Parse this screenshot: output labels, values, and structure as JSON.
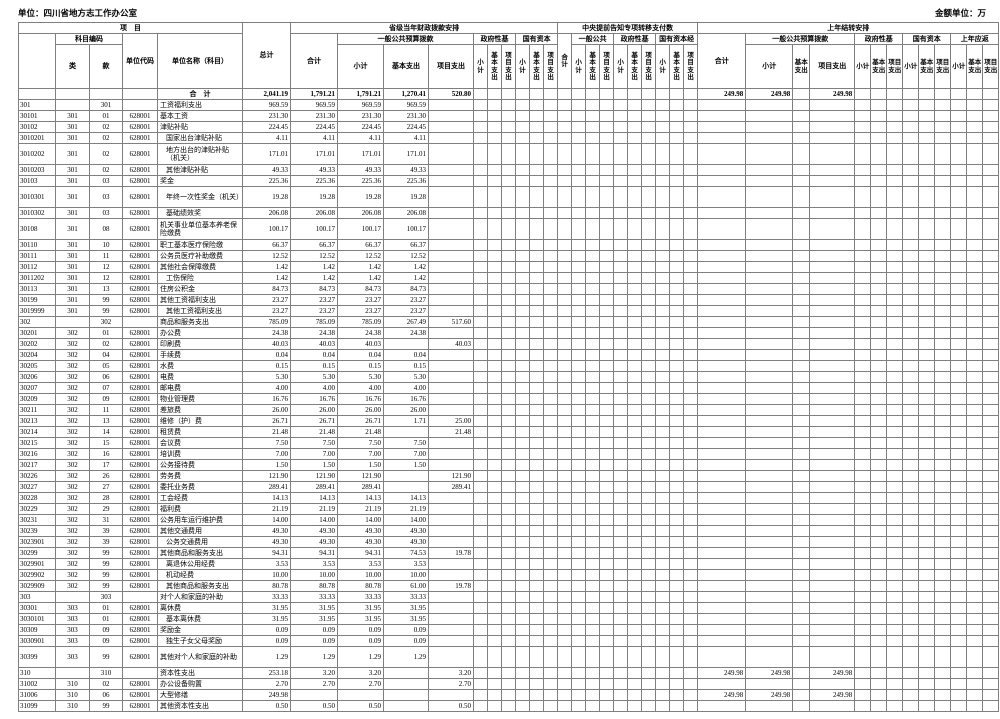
{
  "meta": {
    "unit_label": "单位：四川省地方志工作办公室",
    "amount_unit": "金额单位：万"
  },
  "header": {
    "project": "项　目",
    "subject_code": "科目编码",
    "cls": "类",
    "sec": "款",
    "unit_code": "单位代码",
    "unit_name": "单位名称（科目）",
    "grand_total": "总计",
    "group_provincial": "省级当年财政拨款安排",
    "group_central": "中央提前告知专项转移支付数",
    "group_carryover": "上年结转安排",
    "total_label": "合计",
    "pub_full": "一般公共预算拨款",
    "pub_short": "一般公共",
    "gov_fund": "政府性基",
    "state_capital": "国有资本",
    "state_capital2": "国有资本经",
    "prior_year": "上年应返",
    "subtotal": "小计",
    "basic": "基本支出",
    "project_exp": "项目支出"
  },
  "rows": [
    {
      "code": "",
      "cls": "",
      "sec": "",
      "unit": "",
      "name": "合　计",
      "total": "2,041.19",
      "prov": [
        "1,791.21",
        "1,791.21",
        "1,270.41",
        "520.80"
      ],
      "carry": [
        "249.98",
        "249.98",
        "",
        "249.98"
      ],
      "bold": true
    },
    {
      "code": "301",
      "cls": "",
      "sec": "301",
      "unit": "",
      "name": "工资福利支出",
      "total": "969.59",
      "prov": [
        "969.59",
        "969.59",
        "969.59",
        ""
      ]
    },
    {
      "code": "30101",
      "cls": "301",
      "sec": "01",
      "unit": "628001",
      "name": "基本工资",
      "total": "231.30",
      "prov": [
        "231.30",
        "231.30",
        "231.30",
        ""
      ]
    },
    {
      "code": "30102",
      "cls": "301",
      "sec": "02",
      "unit": "628001",
      "name": "津贴补贴",
      "total": "224.45",
      "prov": [
        "224.45",
        "224.45",
        "224.45",
        ""
      ]
    },
    {
      "code": "3010201",
      "cls": "301",
      "sec": "02",
      "unit": "628001",
      "name": "国家出台津贴补贴",
      "total": "4.11",
      "prov": [
        "4.11",
        "4.11",
        "4.11",
        ""
      ],
      "indent": true
    },
    {
      "code": "3010202",
      "cls": "301",
      "sec": "02",
      "unit": "628001",
      "name": "地方出台的津贴补贴（机关）",
      "total": "171.01",
      "prov": [
        "171.01",
        "171.01",
        "171.01",
        ""
      ],
      "indent": true,
      "twoline": true
    },
    {
      "code": "3010203",
      "cls": "301",
      "sec": "02",
      "unit": "628001",
      "name": "其他津贴补贴",
      "total": "49.33",
      "prov": [
        "49.33",
        "49.33",
        "49.33",
        ""
      ],
      "indent": true
    },
    {
      "code": "30103",
      "cls": "301",
      "sec": "03",
      "unit": "628001",
      "name": "奖金",
      "total": "225.36",
      "prov": [
        "225.36",
        "225.36",
        "225.36",
        ""
      ]
    },
    {
      "code": "3010301",
      "cls": "301",
      "sec": "03",
      "unit": "628001",
      "name": "年终一次性奖金（机关）",
      "total": "19.28",
      "prov": [
        "19.28",
        "19.28",
        "19.28",
        ""
      ],
      "indent": true,
      "twoline": true
    },
    {
      "code": "3010302",
      "cls": "301",
      "sec": "03",
      "unit": "628001",
      "name": "基础绩效奖",
      "total": "206.08",
      "prov": [
        "206.08",
        "206.08",
        "206.08",
        ""
      ],
      "indent": true
    },
    {
      "code": "30108",
      "cls": "301",
      "sec": "08",
      "unit": "628001",
      "name": "机关事业单位基本养老保险缴费",
      "total": "100.17",
      "prov": [
        "100.17",
        "100.17",
        "100.17",
        ""
      ],
      "twoline": true
    },
    {
      "code": "30110",
      "cls": "301",
      "sec": "10",
      "unit": "628001",
      "name": "职工基本医疗保险缴",
      "total": "66.37",
      "prov": [
        "66.37",
        "66.37",
        "66.37",
        ""
      ]
    },
    {
      "code": "30111",
      "cls": "301",
      "sec": "11",
      "unit": "628001",
      "name": "公务员医疗补助缴费",
      "total": "12.52",
      "prov": [
        "12.52",
        "12.52",
        "12.52",
        ""
      ]
    },
    {
      "code": "30112",
      "cls": "301",
      "sec": "12",
      "unit": "628001",
      "name": "其他社会保障缴费",
      "total": "1.42",
      "prov": [
        "1.42",
        "1.42",
        "1.42",
        ""
      ]
    },
    {
      "code": "3011202",
      "cls": "301",
      "sec": "12",
      "unit": "628001",
      "name": "工伤保险",
      "total": "1.42",
      "prov": [
        "1.42",
        "1.42",
        "1.42",
        ""
      ],
      "indent": true
    },
    {
      "code": "30113",
      "cls": "301",
      "sec": "13",
      "unit": "628001",
      "name": "住房公积金",
      "total": "84.73",
      "prov": [
        "84.73",
        "84.73",
        "84.73",
        ""
      ]
    },
    {
      "code": "30199",
      "cls": "301",
      "sec": "99",
      "unit": "628001",
      "name": "其他工资福利支出",
      "total": "23.27",
      "prov": [
        "23.27",
        "23.27",
        "23.27",
        ""
      ]
    },
    {
      "code": "3019999",
      "cls": "301",
      "sec": "99",
      "unit": "628001",
      "name": "其他工资福利支出",
      "total": "23.27",
      "prov": [
        "23.27",
        "23.27",
        "23.27",
        ""
      ],
      "indent": true
    },
    {
      "code": "302",
      "cls": "",
      "sec": "302",
      "unit": "",
      "name": "商品和服务支出",
      "total": "785.09",
      "prov": [
        "785.09",
        "785.09",
        "267.49",
        "517.60"
      ]
    },
    {
      "code": "30201",
      "cls": "302",
      "sec": "01",
      "unit": "628001",
      "name": "办公费",
      "total": "24.38",
      "prov": [
        "24.38",
        "24.38",
        "24.38",
        ""
      ]
    },
    {
      "code": "30202",
      "cls": "302",
      "sec": "02",
      "unit": "628001",
      "name": "印刷费",
      "total": "40.03",
      "prov": [
        "40.03",
        "40.03",
        "",
        "40.03"
      ]
    },
    {
      "code": "30204",
      "cls": "302",
      "sec": "04",
      "unit": "628001",
      "name": "手续费",
      "total": "0.04",
      "prov": [
        "0.04",
        "0.04",
        "0.04",
        ""
      ]
    },
    {
      "code": "30205",
      "cls": "302",
      "sec": "05",
      "unit": "628001",
      "name": "水费",
      "total": "0.15",
      "prov": [
        "0.15",
        "0.15",
        "0.15",
        ""
      ]
    },
    {
      "code": "30206",
      "cls": "302",
      "sec": "06",
      "unit": "628001",
      "name": "电费",
      "total": "5.30",
      "prov": [
        "5.30",
        "5.30",
        "5.30",
        ""
      ]
    },
    {
      "code": "30207",
      "cls": "302",
      "sec": "07",
      "unit": "628001",
      "name": "邮电费",
      "total": "4.00",
      "prov": [
        "4.00",
        "4.00",
        "4.00",
        ""
      ]
    },
    {
      "code": "30209",
      "cls": "302",
      "sec": "09",
      "unit": "628001",
      "name": "物业管理费",
      "total": "16.76",
      "prov": [
        "16.76",
        "16.76",
        "16.76",
        ""
      ]
    },
    {
      "code": "30211",
      "cls": "302",
      "sec": "11",
      "unit": "628001",
      "name": "差旅费",
      "total": "26.00",
      "prov": [
        "26.00",
        "26.00",
        "26.00",
        ""
      ]
    },
    {
      "code": "30213",
      "cls": "302",
      "sec": "13",
      "unit": "628001",
      "name": "维修（护）费",
      "total": "26.71",
      "prov": [
        "26.71",
        "26.71",
        "1.71",
        "25.00"
      ]
    },
    {
      "code": "30214",
      "cls": "302",
      "sec": "14",
      "unit": "628001",
      "name": "租赁费",
      "total": "21.48",
      "prov": [
        "21.48",
        "21.48",
        "",
        "21.48"
      ]
    },
    {
      "code": "30215",
      "cls": "302",
      "sec": "15",
      "unit": "628001",
      "name": "会议费",
      "total": "7.50",
      "prov": [
        "7.50",
        "7.50",
        "7.50",
        ""
      ]
    },
    {
      "code": "30216",
      "cls": "302",
      "sec": "16",
      "unit": "628001",
      "name": "培训费",
      "total": "7.00",
      "prov": [
        "7.00",
        "7.00",
        "7.00",
        ""
      ]
    },
    {
      "code": "30217",
      "cls": "302",
      "sec": "17",
      "unit": "628001",
      "name": "公务接待费",
      "total": "1.50",
      "prov": [
        "1.50",
        "1.50",
        "1.50",
        ""
      ]
    },
    {
      "code": "30226",
      "cls": "302",
      "sec": "26",
      "unit": "628001",
      "name": "劳务费",
      "total": "121.90",
      "prov": [
        "121.90",
        "121.90",
        "",
        "121.90"
      ]
    },
    {
      "code": "30227",
      "cls": "302",
      "sec": "27",
      "unit": "628001",
      "name": "委托业务费",
      "total": "289.41",
      "prov": [
        "289.41",
        "289.41",
        "",
        "289.41"
      ]
    },
    {
      "code": "30228",
      "cls": "302",
      "sec": "28",
      "unit": "628001",
      "name": "工会经费",
      "total": "14.13",
      "prov": [
        "14.13",
        "14.13",
        "14.13",
        ""
      ]
    },
    {
      "code": "30229",
      "cls": "302",
      "sec": "29",
      "unit": "628001",
      "name": "福利费",
      "total": "21.19",
      "prov": [
        "21.19",
        "21.19",
        "21.19",
        ""
      ]
    },
    {
      "code": "30231",
      "cls": "302",
      "sec": "31",
      "unit": "628001",
      "name": "公务用车运行维护费",
      "total": "14.00",
      "prov": [
        "14.00",
        "14.00",
        "14.00",
        ""
      ]
    },
    {
      "code": "30239",
      "cls": "302",
      "sec": "39",
      "unit": "628001",
      "name": "其他交通费用",
      "total": "49.30",
      "prov": [
        "49.30",
        "49.30",
        "49.30",
        ""
      ]
    },
    {
      "code": "3023901",
      "cls": "302",
      "sec": "39",
      "unit": "628001",
      "name": "公务交通费用",
      "total": "49.30",
      "prov": [
        "49.30",
        "49.30",
        "49.30",
        ""
      ],
      "indent": true
    },
    {
      "code": "30299",
      "cls": "302",
      "sec": "99",
      "unit": "628001",
      "name": "其他商品和服务支出",
      "total": "94.31",
      "prov": [
        "94.31",
        "94.31",
        "74.53",
        "19.78"
      ]
    },
    {
      "code": "3029901",
      "cls": "302",
      "sec": "99",
      "unit": "628001",
      "name": "离退休公用经费",
      "total": "3.53",
      "prov": [
        "3.53",
        "3.53",
        "3.53",
        ""
      ],
      "indent": true
    },
    {
      "code": "3029902",
      "cls": "302",
      "sec": "99",
      "unit": "628001",
      "name": "机动经费",
      "total": "10.00",
      "prov": [
        "10.00",
        "10.00",
        "10.00",
        ""
      ],
      "indent": true
    },
    {
      "code": "3029909",
      "cls": "302",
      "sec": "99",
      "unit": "628001",
      "name": "其他商品和服务支出",
      "total": "80.78",
      "prov": [
        "80.78",
        "80.78",
        "61.00",
        "19.78"
      ],
      "indent": true
    },
    {
      "code": "303",
      "cls": "",
      "sec": "303",
      "unit": "",
      "name": "对个人和家庭的补助",
      "total": "33.33",
      "prov": [
        "33.33",
        "33.33",
        "33.33",
        ""
      ]
    },
    {
      "code": "30301",
      "cls": "303",
      "sec": "01",
      "unit": "628001",
      "name": "离休费",
      "total": "31.95",
      "prov": [
        "31.95",
        "31.95",
        "31.95",
        ""
      ]
    },
    {
      "code": "3030101",
      "cls": "303",
      "sec": "01",
      "unit": "628001",
      "name": "基本离休费",
      "total": "31.95",
      "prov": [
        "31.95",
        "31.95",
        "31.95",
        ""
      ],
      "indent": true
    },
    {
      "code": "30309",
      "cls": "303",
      "sec": "09",
      "unit": "628001",
      "name": "奖励金",
      "total": "0.09",
      "prov": [
        "0.09",
        "0.09",
        "0.09",
        ""
      ]
    },
    {
      "code": "3030901",
      "cls": "303",
      "sec": "09",
      "unit": "628001",
      "name": "独生子女父母奖励",
      "total": "0.09",
      "prov": [
        "0.09",
        "0.09",
        "0.09",
        ""
      ],
      "indent": true
    },
    {
      "code": "30399",
      "cls": "303",
      "sec": "99",
      "unit": "628001",
      "name": "其他对个人和家庭的补助",
      "total": "1.29",
      "prov": [
        "1.29",
        "1.29",
        "1.29",
        ""
      ],
      "twoline": true
    },
    {
      "code": "310",
      "cls": "",
      "sec": "310",
      "unit": "",
      "name": "资本性支出",
      "total": "253.18",
      "prov": [
        "3.20",
        "3.20",
        "",
        "3.20"
      ],
      "carry": [
        "249.98",
        "249.98",
        "",
        "249.98"
      ]
    },
    {
      "code": "31002",
      "cls": "310",
      "sec": "02",
      "unit": "628001",
      "name": "办公设备购置",
      "total": "2.70",
      "prov": [
        "2.70",
        "2.70",
        "",
        "2.70"
      ]
    },
    {
      "code": "31006",
      "cls": "310",
      "sec": "06",
      "unit": "628001",
      "name": "大型修缮",
      "total": "249.98",
      "prov": [
        "",
        "",
        "",
        ""
      ],
      "carry": [
        "249.98",
        "249.98",
        "",
        "249.98"
      ]
    },
    {
      "code": "31099",
      "cls": "310",
      "sec": "99",
      "unit": "628001",
      "name": "其他资本性支出",
      "total": "0.50",
      "prov": [
        "0.50",
        "0.50",
        "",
        "0.50"
      ]
    }
  ]
}
